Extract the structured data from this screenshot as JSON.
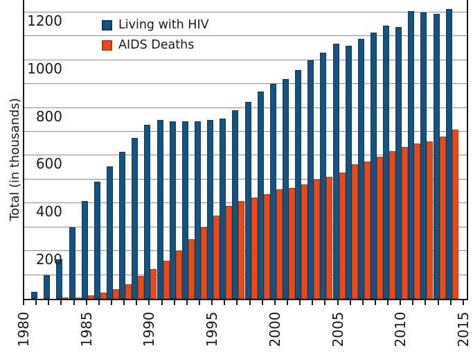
{
  "chart_data": {
    "type": "bar",
    "title": "",
    "ylabel": "Total (in thousands)",
    "xlabel": "",
    "legend_position": "top-left-inside",
    "grid": "horizontal, every 100",
    "ylim": [
      0,
      1252
    ],
    "y_tick_labels": [
      200,
      400,
      600,
      800,
      1000,
      1200
    ],
    "gridline_values": [
      100,
      200,
      300,
      400,
      500,
      600,
      700,
      800,
      900,
      1000,
      1100,
      1200
    ],
    "x_major_tick_labels": [
      "1980",
      "1985",
      "1990",
      "1995",
      "2000",
      "2005",
      "2010",
      "2015"
    ],
    "x_axis_range": [
      1980,
      2015
    ],
    "years": [
      1980,
      1981,
      1982,
      1983,
      1984,
      1985,
      1986,
      1987,
      1988,
      1989,
      1990,
      1991,
      1992,
      1993,
      1994,
      1995,
      1996,
      1997,
      1998,
      1999,
      2000,
      2001,
      2002,
      2003,
      2004,
      2005,
      2006,
      2007,
      2008,
      2009,
      2010,
      2011,
      2012,
      2013,
      2014
    ],
    "series": [
      {
        "name": "Living with HIV",
        "color": "#17517E",
        "border_color": "#0E3A5C",
        "values": [
          0,
          30,
          100,
          165,
          300,
          410,
          490,
          555,
          615,
          675,
          730,
          750,
          745,
          745,
          745,
          750,
          755,
          790,
          825,
          870,
          900,
          920,
          960,
          1000,
          1030,
          1070,
          1060,
          1090,
          1115,
          1145,
          1140,
          1205,
          1200,
          1195,
          1215
        ]
      },
      {
        "name": "AIDS Deaths",
        "color": "#E8491B",
        "border_color": "#BB3A0E",
        "values": [
          0,
          0,
          0,
          2,
          5,
          15,
          25,
          40,
          60,
          95,
          125,
          160,
          200,
          250,
          300,
          350,
          390,
          410,
          425,
          440,
          460,
          465,
          480,
          500,
          510,
          530,
          565,
          575,
          595,
          620,
          635,
          650,
          660,
          680,
          710
        ]
      }
    ]
  },
  "colors": {
    "gridline": "#8c8c8c",
    "axis": "#1a1a1a",
    "background": "#ffffff",
    "text": "#1a1a1a"
  }
}
